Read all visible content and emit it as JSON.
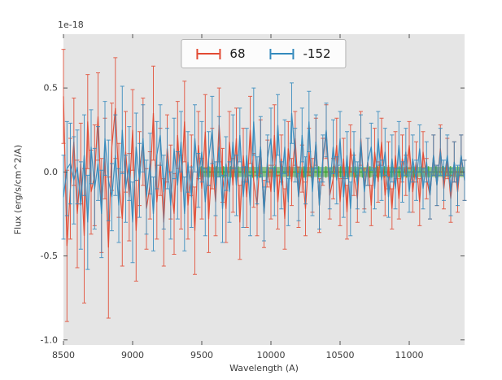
{
  "figure": {
    "offset_text": "1e-18",
    "xlabel": "Wavelength (A)",
    "ylabel": "Flux (erg/s/cm^2/A)"
  },
  "legend": {
    "entries": [
      {
        "label": "68",
        "color": "#E24A33"
      },
      {
        "label": "-152",
        "color": "#348ABD"
      }
    ]
  },
  "chart_data": {
    "type": "line",
    "style": "errorbar",
    "title": "",
    "xlabel": "Wavelength (A)",
    "ylabel": "Flux (erg/s/cm^2/A)",
    "y_offset_factor": "1e-18",
    "xlim": [
      8500,
      11400
    ],
    "ylim": [
      -1.03,
      0.82
    ],
    "xticks": [
      8500,
      9000,
      9500,
      10000,
      10500,
      11000
    ],
    "yticks": [
      -1.0,
      -0.5,
      0.0,
      0.5
    ],
    "grid": false,
    "background": "#E5E5E5",
    "legend_position": "upper center",
    "band": {
      "x_start": 9480,
      "x_end": 11400,
      "y_center": 0,
      "y_half_width": 0.03,
      "color": "#33a02c"
    },
    "series": [
      {
        "name": "68",
        "color": "#E24A33",
        "x_start": 8500,
        "x_step": 25,
        "y": [
          0.45,
          -0.44,
          -0.1,
          0.18,
          -0.25,
          0.05,
          -0.38,
          0.3,
          -0.12,
          -0.02,
          0.33,
          -0.2,
          0.08,
          -0.45,
          0.15,
          0.38,
          -0.05,
          -0.28,
          0.12,
          -0.15,
          0.25,
          -0.35,
          0.02,
          0.18,
          -0.22,
          -0.08,
          0.35,
          -0.18,
          0.06,
          -0.3,
          0.14,
          -0.06,
          -0.25,
          0.22,
          -0.12,
          0.3,
          -0.2,
          0.04,
          -0.35,
          0.16,
          -0.1,
          0.24,
          -0.28,
          0.08,
          -0.18,
          0.28,
          -0.02,
          -0.22,
          0.18,
          -0.08,
          0.2,
          -0.3,
          0.1,
          -0.15,
          0.25,
          -0.05,
          -0.2,
          0.15,
          -0.25,
          0.05,
          -0.12,
          0.22,
          -0.18,
          0.08,
          -0.28,
          0.14,
          -0.06,
          0.2,
          -0.15,
          0.02,
          -0.22,
          0.12,
          -0.08,
          0.18,
          -0.2,
          0.06,
          0.24,
          -0.14,
          -0.04,
          0.16,
          -0.18,
          0.08,
          -0.24,
          0.14,
          -0.02,
          -0.16,
          0.2,
          -0.1,
          0.06,
          -0.2,
          0.12,
          -0.06,
          0.18,
          -0.14,
          0.04,
          -0.22,
          0.1,
          -0.16,
          0.08,
          -0.02,
          0.16,
          -0.12,
          0.06,
          -0.18,
          0.12,
          -0.04,
          -0.14,
          0.1,
          -0.08,
          0.14,
          -0.1,
          0.08,
          -0.16,
          0.06,
          -0.12,
          0.1,
          -0.05
        ],
        "yerr": [
          0.28,
          0.45,
          0.3,
          0.26,
          0.32,
          0.24,
          0.4,
          0.28,
          0.25,
          0.3,
          0.26,
          0.28,
          0.24,
          0.42,
          0.26,
          0.3,
          0.22,
          0.28,
          0.24,
          0.26,
          0.24,
          0.3,
          0.22,
          0.26,
          0.24,
          0.2,
          0.28,
          0.22,
          0.2,
          0.26,
          0.2,
          0.22,
          0.24,
          0.2,
          0.22,
          0.24,
          0.2,
          0.18,
          0.26,
          0.2,
          0.18,
          0.22,
          0.2,
          0.18,
          0.2,
          0.22,
          0.16,
          0.2,
          0.18,
          0.16,
          0.18,
          0.22,
          0.16,
          0.18,
          0.2,
          0.16,
          0.18,
          0.16,
          0.2,
          0.14,
          0.16,
          0.18,
          0.16,
          0.14,
          0.18,
          0.16,
          0.14,
          0.16,
          0.18,
          0.14,
          0.16,
          0.14,
          0.16,
          0.14,
          0.16,
          0.14,
          0.16,
          0.14,
          0.12,
          0.16,
          0.14,
          0.12,
          0.16,
          0.14,
          0.12,
          0.14,
          0.16,
          0.12,
          0.14,
          0.12,
          0.14,
          0.12,
          0.14,
          0.12,
          0.14,
          0.12,
          0.14,
          0.12,
          0.14,
          0.12,
          0.14,
          0.12,
          0.12,
          0.14,
          0.12,
          0.12,
          0.14,
          0.12,
          0.12,
          0.14,
          0.12,
          0.12,
          0.14,
          0.12,
          0.12,
          0.12,
          0.12
        ]
      },
      {
        "name": "-152",
        "color": "#348ABD",
        "x_start": 8500,
        "x_step": 25,
        "y": [
          -0.15,
          0.02,
          0.05,
          -0.05,
          0.03,
          -0.2,
          0.1,
          -0.3,
          0.15,
          -0.1,
          0.05,
          -0.25,
          0.2,
          -0.05,
          -0.15,
          0.1,
          -0.2,
          0.25,
          -0.1,
          0.05,
          -0.3,
          0.15,
          -0.05,
          0.2,
          -0.15,
          0.05,
          -0.25,
          0.1,
          0.22,
          -0.12,
          0.08,
          -0.2,
          0.14,
          -0.08,
          0.18,
          -0.25,
          0.06,
          -0.15,
          0.2,
          -0.05,
          0.12,
          -0.18,
          0.08,
          0.25,
          -0.1,
          0.15,
          -0.22,
          0.05,
          -0.12,
          0.18,
          -0.08,
          0.22,
          -0.15,
          0.1,
          -0.2,
          0.3,
          -0.05,
          0.15,
          -0.25,
          0.08,
          0.2,
          -0.12,
          0.28,
          -0.08,
          0.15,
          -0.18,
          0.35,
          0.1,
          -0.15,
          0.22,
          -0.05,
          0.3,
          -0.12,
          0.18,
          -0.2,
          0.08,
          0.25,
          -0.1,
          0.15,
          -0.05,
          0.2,
          -0.15,
          0.1,
          -0.22,
          0.12,
          -0.08,
          0.18,
          -0.12,
          0.06,
          0.15,
          -0.1,
          0.2,
          -0.05,
          0.12,
          -0.15,
          0.08,
          -0.1,
          0.16,
          -0.06,
          0.12,
          -0.12,
          0.08,
          -0.05,
          0.14,
          -0.1,
          0.06,
          -0.14,
          0.1,
          -0.08,
          0.12,
          -0.05,
          0.1,
          -0.12,
          0.06,
          -0.08,
          0.1,
          -0.05
        ],
        "yerr": [
          0.25,
          0.28,
          0.24,
          0.26,
          0.22,
          0.26,
          0.24,
          0.28,
          0.22,
          0.24,
          0.22,
          0.26,
          0.22,
          0.24,
          0.2,
          0.24,
          0.22,
          0.26,
          0.2,
          0.22,
          0.24,
          0.2,
          0.22,
          0.2,
          0.22,
          0.18,
          0.22,
          0.2,
          0.18,
          0.22,
          0.18,
          0.2,
          0.18,
          0.2,
          0.18,
          0.22,
          0.18,
          0.18,
          0.2,
          0.16,
          0.18,
          0.2,
          0.16,
          0.2,
          0.16,
          0.18,
          0.2,
          0.16,
          0.18,
          0.16,
          0.18,
          0.16,
          0.18,
          0.16,
          0.18,
          0.2,
          0.14,
          0.18,
          0.16,
          0.14,
          0.18,
          0.14,
          0.18,
          0.14,
          0.16,
          0.14,
          0.18,
          0.16,
          0.14,
          0.16,
          0.14,
          0.18,
          0.14,
          0.16,
          0.14,
          0.14,
          0.16,
          0.12,
          0.16,
          0.14,
          0.16,
          0.12,
          0.14,
          0.16,
          0.12,
          0.14,
          0.16,
          0.12,
          0.14,
          0.14,
          0.12,
          0.16,
          0.12,
          0.14,
          0.12,
          0.14,
          0.12,
          0.14,
          0.12,
          0.14,
          0.12,
          0.14,
          0.12,
          0.14,
          0.12,
          0.12,
          0.14,
          0.12,
          0.12,
          0.14,
          0.12,
          0.12,
          0.14,
          0.12,
          0.12,
          0.12,
          0.12
        ]
      }
    ]
  }
}
